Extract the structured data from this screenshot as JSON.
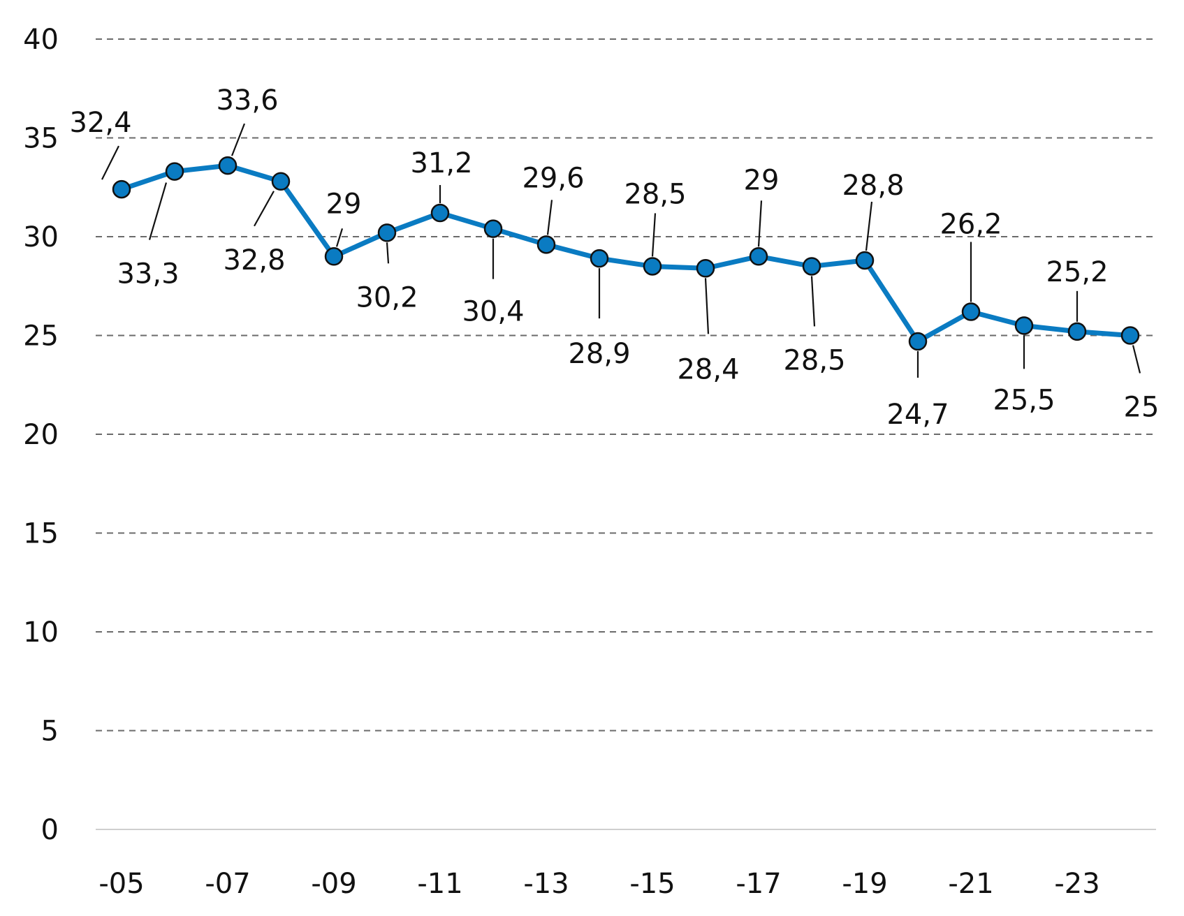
{
  "chart_data": {
    "type": "line",
    "title": "",
    "xlabel": "",
    "ylabel": "",
    "x": [
      2005,
      2006,
      2007,
      2008,
      2009,
      2010,
      2011,
      2012,
      2013,
      2014,
      2015,
      2016,
      2017,
      2018,
      2019,
      2020,
      2021,
      2022,
      2023,
      2024
    ],
    "x_tick_values": [
      2005,
      2007,
      2009,
      2011,
      2013,
      2015,
      2017,
      2019,
      2021,
      2023
    ],
    "x_tick_labels": [
      "-05",
      "-07",
      "-09",
      "-11",
      "-13",
      "-15",
      "-17",
      "-19",
      "-21",
      "-23"
    ],
    "ylim": [
      0,
      40
    ],
    "y_ticks": [
      0,
      5,
      10,
      15,
      20,
      25,
      30,
      35,
      40
    ],
    "y_tick_labels": [
      "0",
      "5",
      "10",
      "15",
      "20",
      "25",
      "30",
      "35",
      "40"
    ],
    "grid": true,
    "series": [
      {
        "color": "#0a7bc2",
        "values": [
          32.4,
          33.3,
          33.6,
          32.8,
          29,
          30.2,
          31.2,
          30.4,
          29.6,
          28.9,
          28.5,
          28.4,
          29,
          28.5,
          28.8,
          24.7,
          26.2,
          25.5,
          25.2,
          25
        ],
        "data_labels": [
          "32,4",
          "33,3",
          "33,6",
          "32,8",
          "29",
          "30,2",
          "31,2",
          "30,4",
          "29,6",
          "28,9",
          "28,5",
          "28,4",
          "29",
          "28,5",
          "28,8",
          "24,7",
          "26,2",
          "25,5",
          "25,2",
          "25"
        ]
      }
    ]
  }
}
